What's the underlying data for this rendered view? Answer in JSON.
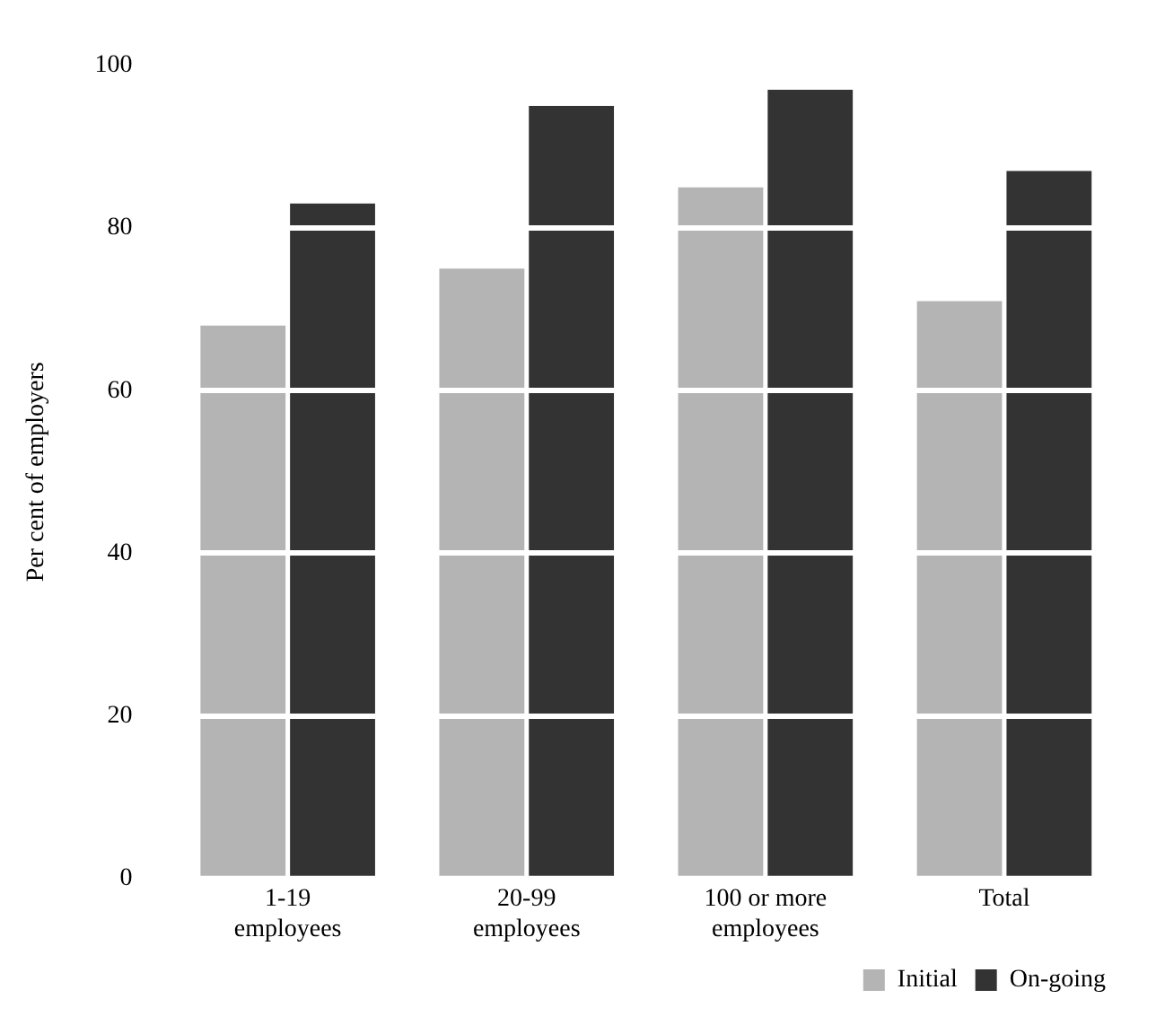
{
  "chart_data": {
    "type": "bar",
    "ylabel": "Per cent of employers",
    "categories": [
      "1-19 employees",
      "20-99 employees",
      "100 or more employees",
      "Total"
    ],
    "series": [
      {
        "name": "Initial",
        "color": "#b4b4b4",
        "values": [
          68,
          75,
          85,
          71
        ]
      },
      {
        "name": "On-going",
        "color": "#333333",
        "values": [
          83,
          95,
          97,
          87
        ]
      }
    ],
    "ylim": [
      0,
      100
    ],
    "yticks": [
      0,
      20,
      40,
      60,
      80,
      100
    ],
    "grid": "y",
    "legend": "bottom right"
  }
}
